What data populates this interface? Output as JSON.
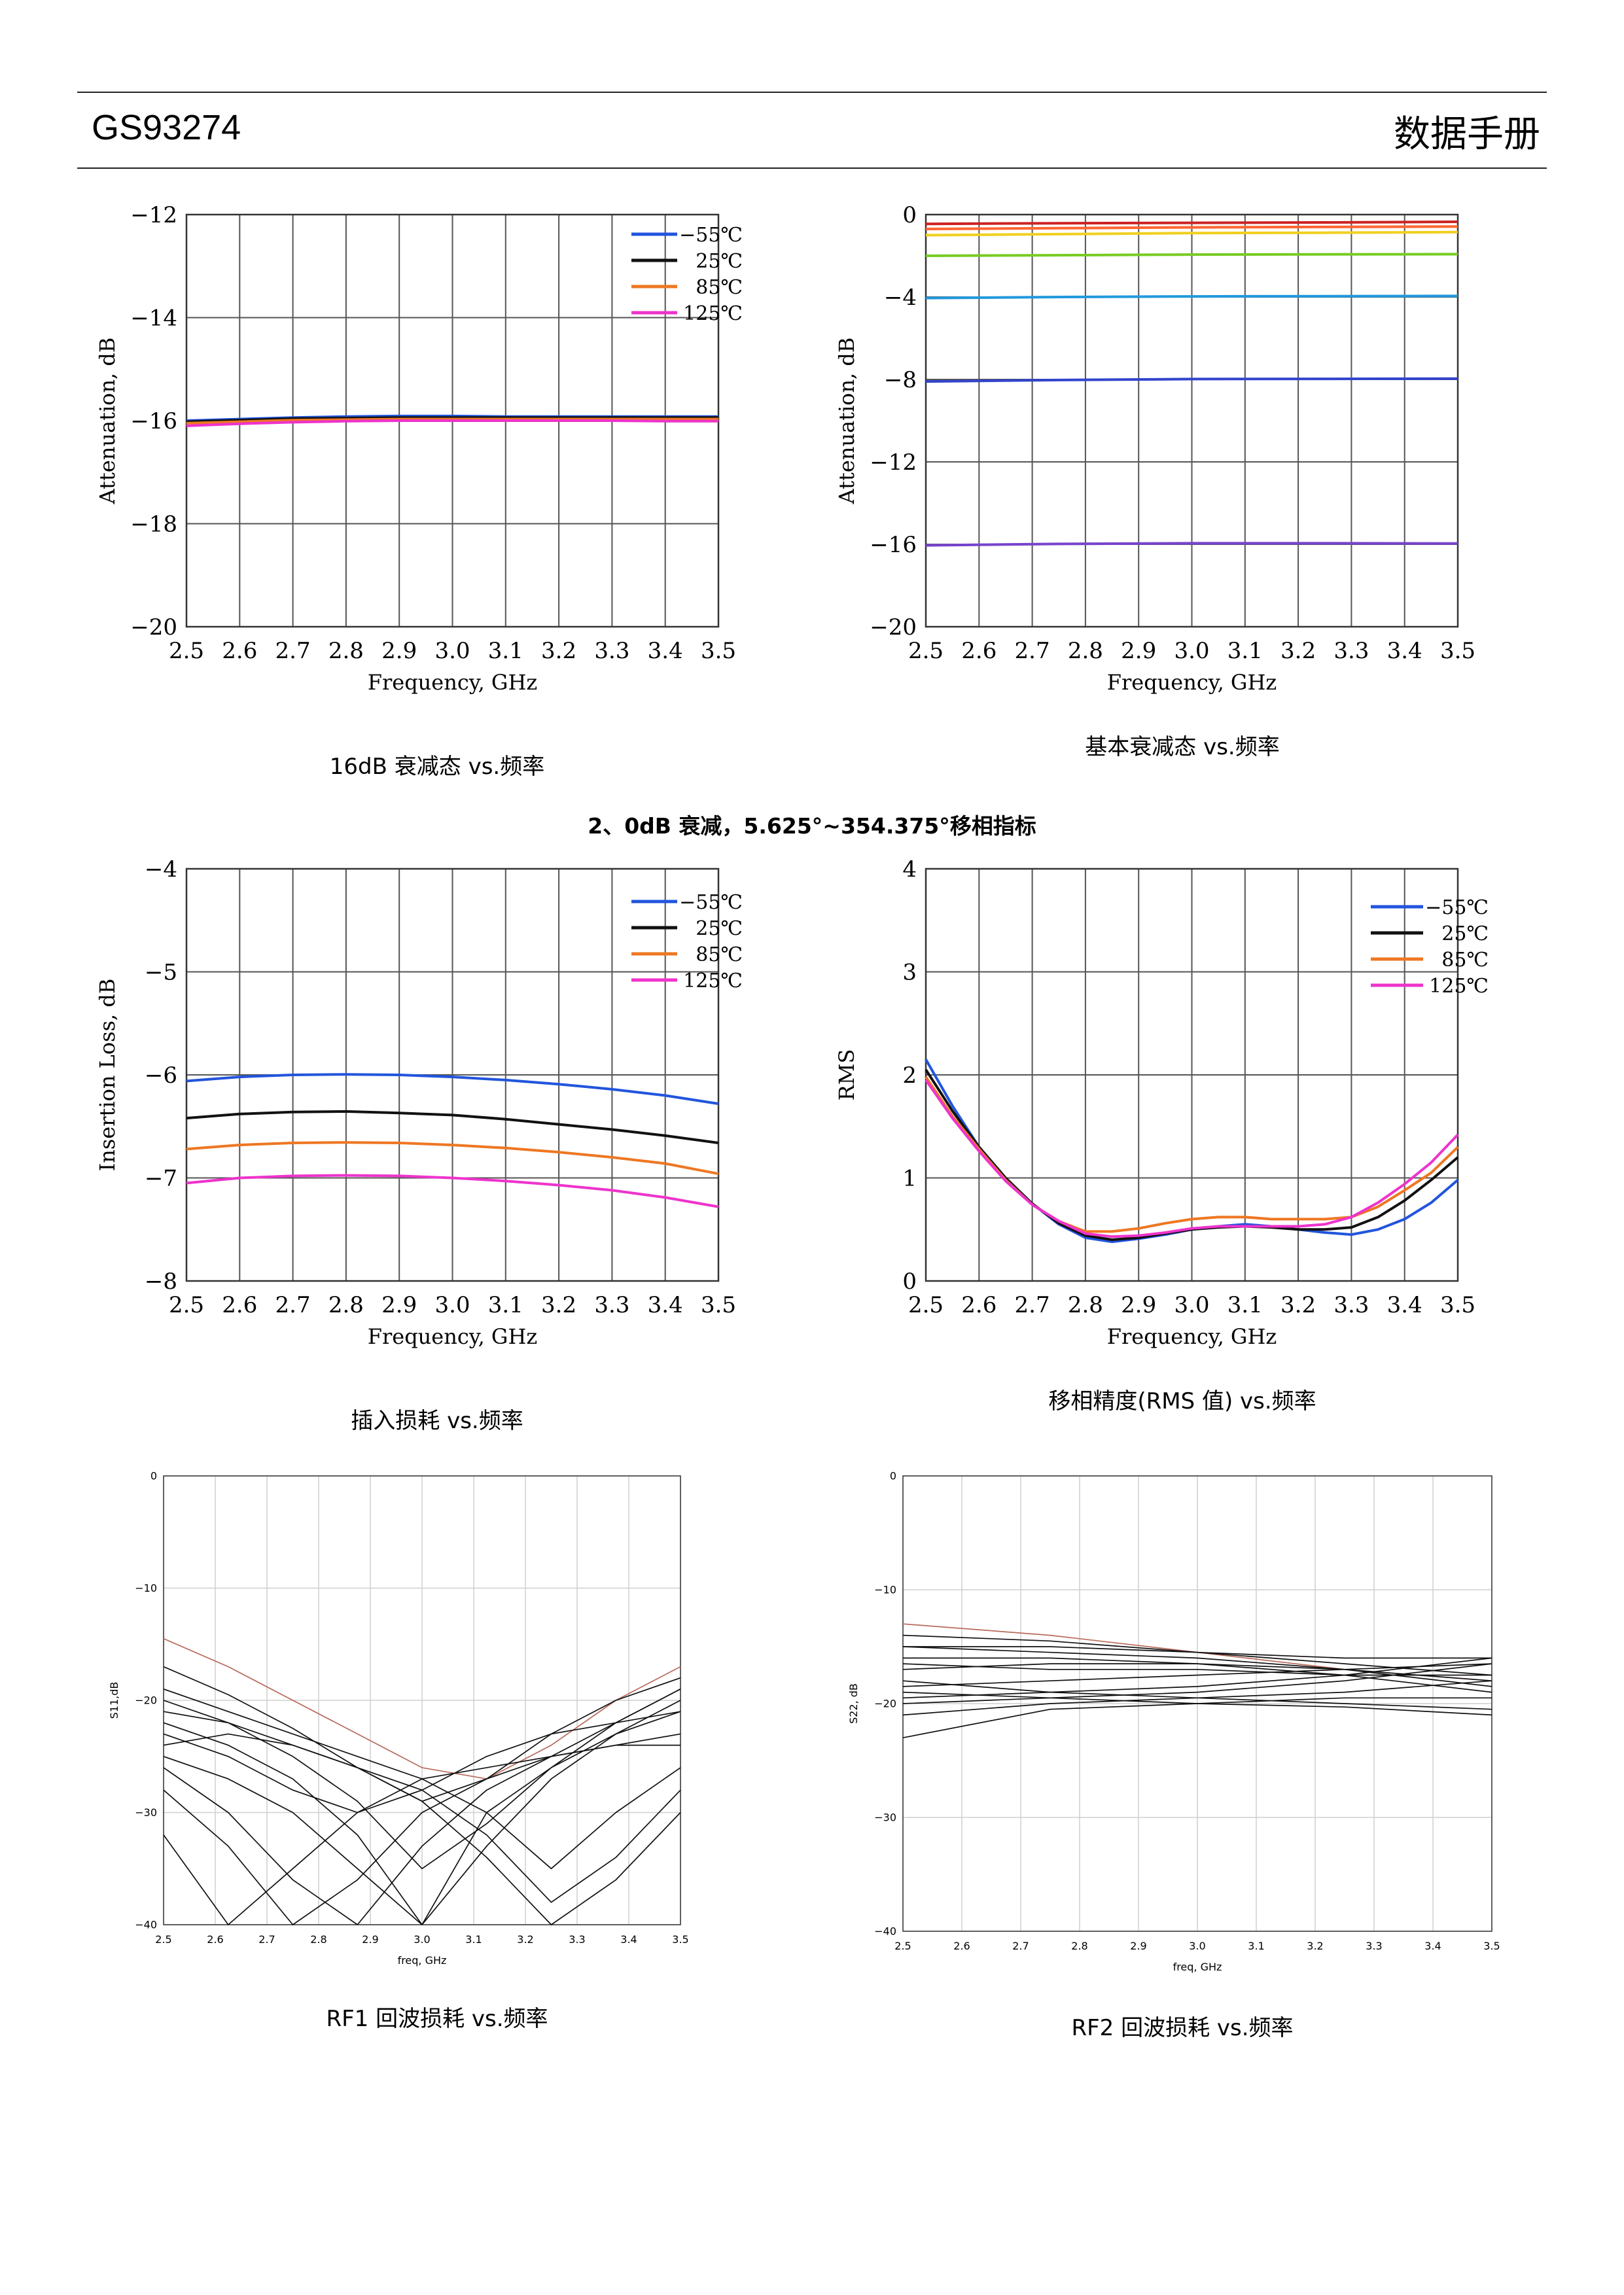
{
  "header": {
    "model": "GS93274",
    "doc_type": "数据手册"
  },
  "captions": {
    "c1": "16dB 衰减态 vs.频率",
    "c2": "基本衰减态 vs.频率",
    "section2": "2、0dB 衰减，5.625°~354.375°移相指标",
    "c3": "插入损耗 vs.频率",
    "c4": "移相精度(RMS 值) vs.频率",
    "c5": "RF1 回波损耗 vs.频率",
    "c6": "RF2 回波损耗 vs.频率"
  },
  "chart_data": [
    {
      "type": "line",
      "xlabel": "Frequency, GHz",
      "ylabel": "Attenuation, dB",
      "xlim": [
        2.5,
        3.5
      ],
      "ylim": [
        -20,
        -12
      ],
      "xticks": [
        "2.5",
        "2.6",
        "2.7",
        "2.8",
        "2.9",
        "3.0",
        "3.1",
        "3.2",
        "3.3",
        "3.4",
        "3.5"
      ],
      "yticks": [
        "-12",
        "-14",
        "-16",
        "-18",
        "-20"
      ],
      "grid": true,
      "legend": "top-right",
      "x": [
        2.5,
        2.6,
        2.7,
        2.8,
        2.9,
        3.0,
        3.1,
        3.2,
        3.3,
        3.4,
        3.5
      ],
      "series": [
        {
          "name": "-55℃",
          "color": "#2255dd",
          "values": [
            -16.0,
            -15.97,
            -15.94,
            -15.92,
            -15.91,
            -15.91,
            -15.92,
            -15.92,
            -15.92,
            -15.92,
            -15.92
          ]
        },
        {
          "name": "25℃",
          "color": "#111111",
          "values": [
            -16.02,
            -15.99,
            -15.96,
            -15.95,
            -15.94,
            -15.94,
            -15.94,
            -15.94,
            -15.94,
            -15.94,
            -15.94
          ]
        },
        {
          "name": "85℃",
          "color": "#ee7722",
          "values": [
            -16.05,
            -16.02,
            -15.99,
            -15.98,
            -15.97,
            -15.97,
            -15.97,
            -15.97,
            -15.97,
            -15.97,
            -15.97
          ]
        },
        {
          "name": "125℃",
          "color": "#ee33cc",
          "values": [
            -16.1,
            -16.06,
            -16.03,
            -16.01,
            -16.0,
            -16.0,
            -16.0,
            -16.0,
            -16.0,
            -16.01,
            -16.01
          ]
        }
      ]
    },
    {
      "type": "line",
      "xlabel": "Frequency, GHz",
      "ylabel": "Attenuation, dB",
      "xlim": [
        2.5,
        3.5
      ],
      "ylim": [
        -20,
        0
      ],
      "xticks": [
        "2.5",
        "2.6",
        "2.7",
        "2.8",
        "2.9",
        "3.0",
        "3.1",
        "3.2",
        "3.3",
        "3.4",
        "3.5"
      ],
      "yticks": [
        "0",
        "-4",
        "-8",
        "-12",
        "-16",
        "-20"
      ],
      "grid": true,
      "x": [
        2.5,
        2.75,
        3.0,
        3.25,
        3.5
      ],
      "series": [
        {
          "color": "#cc2222",
          "values": [
            -0.45,
            -0.42,
            -0.4,
            -0.38,
            -0.35
          ]
        },
        {
          "color": "#ff6633",
          "values": [
            -0.7,
            -0.66,
            -0.62,
            -0.6,
            -0.58
          ]
        },
        {
          "color": "#f0d020",
          "values": [
            -1.0,
            -0.95,
            -0.9,
            -0.88,
            -0.85
          ]
        },
        {
          "color": "#77cc22",
          "values": [
            -2.0,
            -1.97,
            -1.94,
            -1.93,
            -1.92
          ]
        },
        {
          "color": "#2299dd",
          "values": [
            -4.05,
            -4.0,
            -3.97,
            -3.96,
            -3.95
          ]
        },
        {
          "color": "#3344cc",
          "values": [
            -8.1,
            -8.03,
            -7.98,
            -7.97,
            -7.96
          ]
        },
        {
          "color": "#7744cc",
          "values": [
            -16.05,
            -15.98,
            -15.95,
            -15.95,
            -15.96
          ]
        }
      ]
    },
    {
      "type": "line",
      "xlabel": "Frequency, GHz",
      "ylabel": "Insertion Loss, dB",
      "xlim": [
        2.5,
        3.5
      ],
      "ylim": [
        -8,
        -4
      ],
      "xticks": [
        "2.5",
        "2.6",
        "2.7",
        "2.8",
        "2.9",
        "3.0",
        "3.1",
        "3.2",
        "3.3",
        "3.4",
        "3.5"
      ],
      "yticks": [
        "-4",
        "-5",
        "-6",
        "-7",
        "-8"
      ],
      "grid": true,
      "legend": "top-right",
      "x": [
        2.5,
        2.6,
        2.7,
        2.8,
        2.9,
        3.0,
        3.1,
        3.2,
        3.3,
        3.4,
        3.5
      ],
      "series": [
        {
          "name": "-55℃",
          "color": "#2255dd",
          "values": [
            -6.06,
            -6.02,
            -6.0,
            -5.995,
            -6.0,
            -6.02,
            -6.05,
            -6.09,
            -6.14,
            -6.2,
            -6.28
          ]
        },
        {
          "name": "25℃",
          "color": "#111111",
          "values": [
            -6.42,
            -6.38,
            -6.36,
            -6.355,
            -6.37,
            -6.39,
            -6.43,
            -6.48,
            -6.53,
            -6.59,
            -6.66
          ]
        },
        {
          "name": "85℃",
          "color": "#ee7722",
          "values": [
            -6.72,
            -6.68,
            -6.66,
            -6.655,
            -6.66,
            -6.68,
            -6.71,
            -6.75,
            -6.8,
            -6.86,
            -6.96
          ]
        },
        {
          "name": "125℃",
          "color": "#ee33cc",
          "values": [
            -7.05,
            -7.0,
            -6.98,
            -6.975,
            -6.98,
            -7.0,
            -7.03,
            -7.07,
            -7.12,
            -7.19,
            -7.28
          ]
        }
      ]
    },
    {
      "type": "line",
      "xlabel": "Frequency, GHz",
      "ylabel": "RMS",
      "xlim": [
        2.5,
        3.5
      ],
      "ylim": [
        0,
        4
      ],
      "xticks": [
        "2.5",
        "2.6",
        "2.7",
        "2.8",
        "2.9",
        "3.0",
        "3.1",
        "3.2",
        "3.3",
        "3.4",
        "3.5"
      ],
      "yticks": [
        "4",
        "3",
        "2",
        "1",
        "0"
      ],
      "grid": true,
      "legend": "top-right",
      "x": [
        2.5,
        2.55,
        2.6,
        2.65,
        2.7,
        2.75,
        2.8,
        2.85,
        2.9,
        2.95,
        3.0,
        3.05,
        3.1,
        3.15,
        3.2,
        3.25,
        3.3,
        3.35,
        3.4,
        3.45,
        3.5
      ],
      "series": [
        {
          "name": "-55℃",
          "color": "#2255dd",
          "values": [
            2.15,
            1.7,
            1.3,
            1.0,
            0.75,
            0.55,
            0.42,
            0.38,
            0.41,
            0.45,
            0.5,
            0.53,
            0.55,
            0.53,
            0.5,
            0.47,
            0.45,
            0.5,
            0.6,
            0.76,
            0.98
          ]
        },
        {
          "name": "25℃",
          "color": "#111111",
          "values": [
            2.05,
            1.65,
            1.3,
            1.0,
            0.75,
            0.56,
            0.44,
            0.4,
            0.42,
            0.46,
            0.5,
            0.52,
            0.53,
            0.52,
            0.5,
            0.5,
            0.52,
            0.62,
            0.78,
            0.98,
            1.2
          ]
        },
        {
          "name": "85℃",
          "color": "#ee7722",
          "values": [
            1.98,
            1.6,
            1.28,
            0.98,
            0.74,
            0.58,
            0.48,
            0.48,
            0.51,
            0.56,
            0.6,
            0.62,
            0.62,
            0.6,
            0.6,
            0.6,
            0.62,
            0.72,
            0.88,
            1.05,
            1.3
          ]
        },
        {
          "name": "125℃",
          "color": "#ee33cc",
          "values": [
            1.95,
            1.58,
            1.26,
            0.97,
            0.74,
            0.58,
            0.46,
            0.43,
            0.44,
            0.47,
            0.51,
            0.53,
            0.53,
            0.53,
            0.53,
            0.55,
            0.62,
            0.76,
            0.94,
            1.15,
            1.42
          ]
        }
      ]
    },
    {
      "type": "line",
      "xlabel": "freq, GHz",
      "ylabel": "S11,dB",
      "xlim": [
        2.5,
        3.5
      ],
      "ylim": [
        -40,
        0
      ],
      "xticks": [
        "2.5",
        "2.6",
        "2.7",
        "2.8",
        "2.9",
        "3.0",
        "3.1",
        "3.2",
        "3.3",
        "3.4",
        "3.5"
      ],
      "yticks": [
        "0",
        "-10",
        "-20",
        "-30",
        "-40"
      ],
      "grid": true,
      "x": [
        2.5,
        2.625,
        2.75,
        2.875,
        3.0,
        3.125,
        3.25,
        3.375,
        3.5
      ],
      "series": [
        {
          "values": [
            -14.5,
            -17,
            -20,
            -23,
            -26,
            -27,
            -24,
            -20,
            -17
          ]
        },
        {
          "values": [
            -17,
            -19.5,
            -22.5,
            -26,
            -29,
            -27,
            -23,
            -20,
            -18
          ]
        },
        {
          "values": [
            -20,
            -22,
            -25,
            -29,
            -35,
            -31,
            -26,
            -22,
            -19
          ]
        },
        {
          "values": [
            -22,
            -24,
            -27,
            -32,
            -40,
            -33,
            -27,
            -23,
            -20
          ]
        },
        {
          "values": [
            -23,
            -25,
            -28,
            -30,
            -28,
            -25,
            -23,
            -22,
            -21
          ]
        },
        {
          "values": [
            -25,
            -27,
            -30,
            -35,
            -40,
            -30,
            -26,
            -23,
            -21
          ]
        },
        {
          "values": [
            -26,
            -30,
            -36,
            -40,
            -33,
            -28,
            -25,
            -22,
            -19
          ]
        },
        {
          "values": [
            -19,
            -21,
            -23,
            -25,
            -27,
            -30,
            -35,
            -30,
            -26
          ]
        },
        {
          "values": [
            -21,
            -22,
            -24,
            -26,
            -28,
            -32,
            -38,
            -34,
            -28
          ]
        },
        {
          "values": [
            -24,
            -23,
            -24,
            -26,
            -29,
            -34,
            -40,
            -36,
            -30
          ]
        },
        {
          "values": [
            -28,
            -33,
            -40,
            -36,
            -30,
            -27,
            -25,
            -24,
            -23
          ]
        },
        {
          "values": [
            -32,
            -40,
            -35,
            -30,
            -27,
            -26,
            -25,
            -24,
            -24
          ]
        }
      ]
    },
    {
      "type": "line",
      "xlabel": "freq, GHz",
      "ylabel": "S22, dB",
      "xlim": [
        2.5,
        3.5
      ],
      "ylim": [
        -40,
        0
      ],
      "xticks": [
        "2.5",
        "2.6",
        "2.7",
        "2.8",
        "2.9",
        "3.0",
        "3.1",
        "3.2",
        "3.3",
        "3.4",
        "3.5"
      ],
      "yticks": [
        "0",
        "-10",
        "-20",
        "-30",
        "-40"
      ],
      "grid": true,
      "x": [
        2.5,
        2.75,
        3.0,
        3.25,
        3.5
      ],
      "series": [
        {
          "values": [
            -13,
            -14,
            -15.5,
            -17,
            -18
          ]
        },
        {
          "values": [
            -14,
            -14.5,
            -15.5,
            -16.5,
            -17.5
          ]
        },
        {
          "values": [
            -15,
            -15.5,
            -16,
            -17,
            -18.5
          ]
        },
        {
          "values": [
            -16,
            -16,
            -16.5,
            -17.5,
            -19
          ]
        },
        {
          "values": [
            -17,
            -16.5,
            -16.5,
            -17,
            -18
          ]
        },
        {
          "values": [
            -18.5,
            -18,
            -17.5,
            -17,
            -16.5
          ]
        },
        {
          "values": [
            -19.5,
            -19,
            -18.5,
            -17.5,
            -16
          ]
        },
        {
          "values": [
            -20,
            -19.5,
            -19,
            -18,
            -16.5
          ]
        },
        {
          "values": [
            -18,
            -19,
            -19.5,
            -20,
            -20.5
          ]
        },
        {
          "values": [
            -19,
            -19.5,
            -20,
            -20.3,
            -21
          ]
        },
        {
          "values": [
            -21,
            -20,
            -19.5,
            -19,
            -18
          ]
        },
        {
          "values": [
            -23,
            -20.5,
            -20,
            -19.5,
            -19.5
          ]
        },
        {
          "values": [
            -16.5,
            -17,
            -17,
            -17.5,
            -17.5
          ]
        },
        {
          "values": [
            -15,
            -15,
            -15.5,
            -16,
            -16
          ]
        }
      ]
    }
  ]
}
